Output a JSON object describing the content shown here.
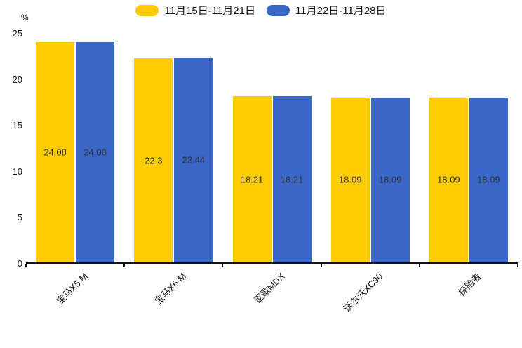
{
  "chart_data": {
    "type": "bar",
    "title": "",
    "categories": [
      "宝马X5 M",
      "宝马X6 M",
      "讴歌MDX",
      "沃尔沃XC90",
      "探险者"
    ],
    "series": [
      {
        "name": "11月15日-11月21日",
        "color": "#FDCB02",
        "values": [
          24.08,
          22.3,
          18.21,
          18.09,
          18.09
        ]
      },
      {
        "name": "11月22日-11月28日",
        "color": "#3A66C8",
        "values": [
          24.08,
          22.44,
          18.21,
          18.09,
          18.09
        ]
      }
    ],
    "xlabel": "",
    "ylabel": "%",
    "ylim": [
      0,
      25
    ],
    "yticks": [
      0,
      5,
      10,
      15,
      20,
      25
    ],
    "legend_position": "top",
    "grid": false,
    "value_labels": true,
    "value_label_color": "#333333",
    "axis_color": "#111111"
  }
}
